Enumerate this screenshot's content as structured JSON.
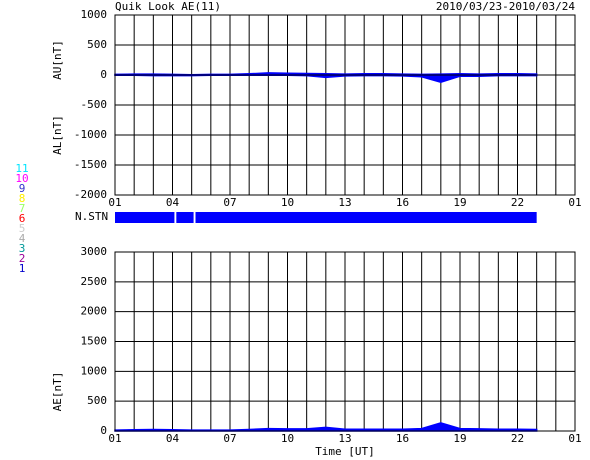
{
  "chart_data": {
    "type": "area",
    "title": "Quik Look AE(11)",
    "date_range": "2010/03/23-2010/03/24",
    "xlabel": "Time [UT]",
    "xlim": [
      0,
      24
    ],
    "xticks": [
      {
        "value": 0,
        "label": "01"
      },
      {
        "value": 3,
        "label": "04"
      },
      {
        "value": 6,
        "label": "07"
      },
      {
        "value": 9,
        "label": "10"
      },
      {
        "value": 12,
        "label": "13"
      },
      {
        "value": 15,
        "label": "16"
      },
      {
        "value": 18,
        "label": "19"
      },
      {
        "value": 21,
        "label": "22"
      },
      {
        "value": 24,
        "label": "01"
      }
    ],
    "x_grid": [
      0,
      1,
      2,
      3,
      4,
      5,
      6,
      7,
      8,
      9,
      10,
      11,
      12,
      13,
      14,
      15,
      16,
      17,
      18,
      19,
      20,
      21,
      22,
      23,
      24
    ],
    "x": [
      0,
      1,
      2,
      3,
      4,
      5,
      6,
      7,
      8,
      9,
      10,
      11,
      12,
      13,
      14,
      15,
      16,
      17,
      18,
      19,
      20,
      21,
      22
    ],
    "upper_panel": {
      "ylim": [
        -2000,
        1000
      ],
      "yticks": [
        1000,
        500,
        0,
        -500,
        -1000,
        -1500,
        -2000
      ],
      "series": [
        {
          "name": "AU[nT]",
          "color": "#0000ff",
          "values": [
            10,
            15,
            15,
            10,
            5,
            10,
            10,
            20,
            35,
            30,
            25,
            20,
            15,
            20,
            20,
            15,
            10,
            15,
            20,
            15,
            20,
            20,
            15
          ]
        },
        {
          "name": "AL[nT]",
          "color": "#0000ff",
          "values": [
            -5,
            -5,
            -10,
            -10,
            -10,
            -5,
            -5,
            -5,
            -5,
            -5,
            -10,
            -40,
            -15,
            -10,
            -10,
            -15,
            -30,
            -120,
            -20,
            -20,
            -10,
            -10,
            -10
          ]
        }
      ]
    },
    "nstn": {
      "label": "N.STN",
      "color": "#0000ff",
      "segments": [
        [
          0,
          3.1
        ],
        [
          3.2,
          4.1
        ],
        [
          4.2,
          22
        ]
      ]
    },
    "lower_panel": {
      "ylim": [
        0,
        3000
      ],
      "yticks": [
        0,
        500,
        1000,
        1500,
        2000,
        2500,
        3000
      ],
      "series": [
        {
          "name": "AE[nT]",
          "color": "#0000ff",
          "values": [
            15,
            20,
            25,
            20,
            15,
            15,
            15,
            25,
            40,
            35,
            35,
            60,
            30,
            30,
            30,
            30,
            40,
            135,
            40,
            35,
            30,
            30,
            25
          ]
        }
      ]
    },
    "station_legend": [
      {
        "label": 11,
        "color": "#00e5ff"
      },
      {
        "label": 10,
        "color": "#ff00ff"
      },
      {
        "label": 9,
        "color": "#3333cc"
      },
      {
        "label": 8,
        "color": "#ffee00"
      },
      {
        "label": 7,
        "color": "#99ff66"
      },
      {
        "label": 6,
        "color": "#ff0000"
      },
      {
        "label": 5,
        "color": "#cccccc"
      },
      {
        "label": 4,
        "color": "#aaaaaa"
      },
      {
        "label": 3,
        "color": "#009999"
      },
      {
        "label": 2,
        "color": "#990099"
      },
      {
        "label": 1,
        "color": "#0000cc"
      }
    ]
  }
}
